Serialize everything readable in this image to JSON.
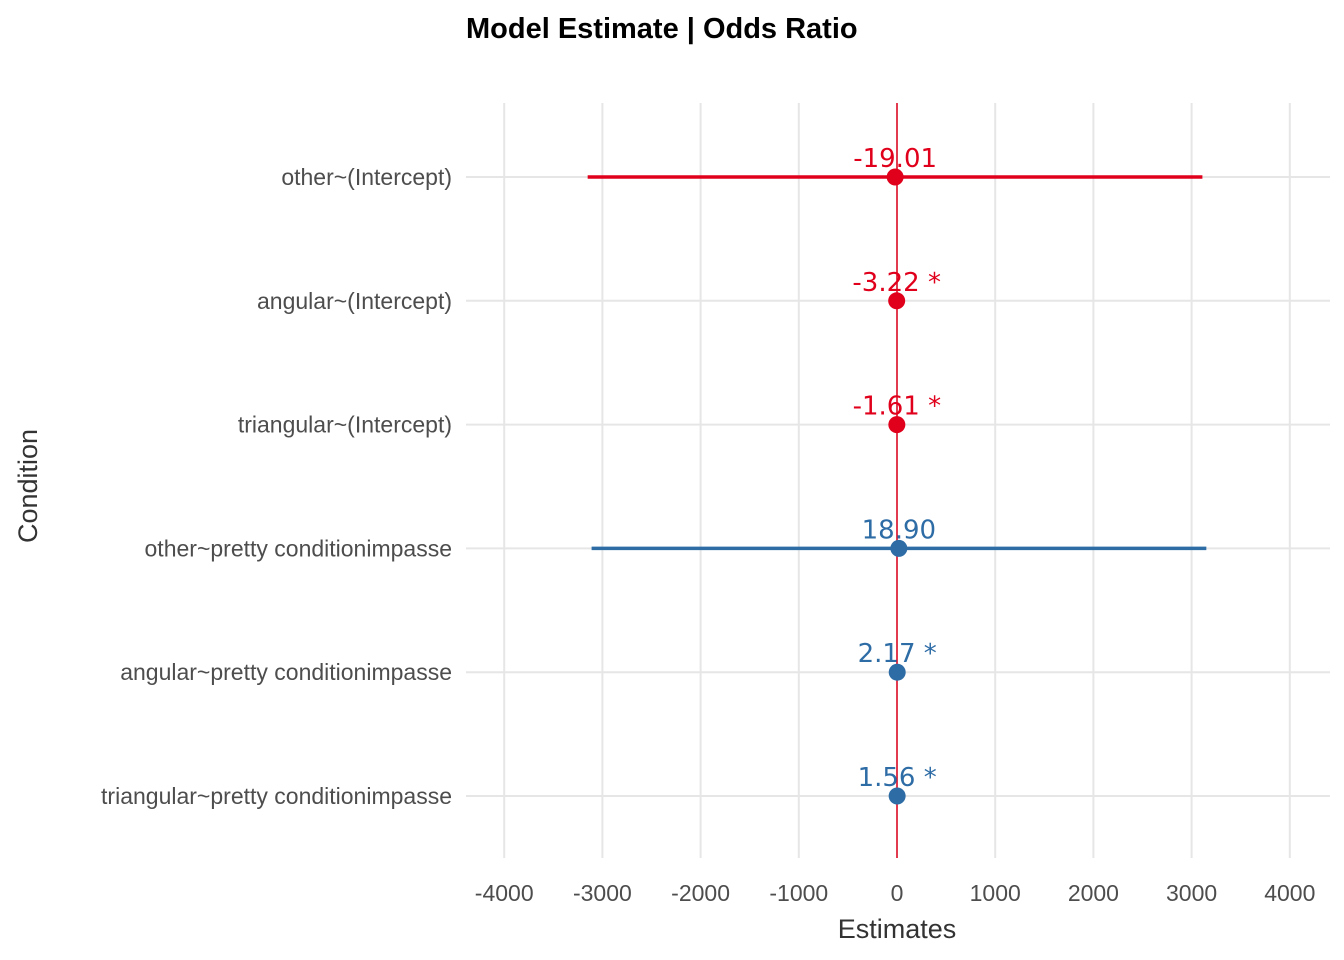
{
  "chart_data": {
    "type": "scatter",
    "title": "Model Estimate | Odds Ratio",
    "xlabel": "Estimates",
    "ylabel": "Condition",
    "xlim": [
      -4400,
      4400
    ],
    "xticks": [
      -4000,
      -3000,
      -2000,
      -1000,
      0,
      1000,
      2000,
      3000,
      4000
    ],
    "xtick_labels": [
      "-4000",
      "-3000",
      "-2000",
      "-1000",
      "0",
      "1000",
      "2000",
      "3000",
      "4000"
    ],
    "reference_line": 0,
    "grid": true,
    "colors": {
      "negative": "#e0001b",
      "positive": "#2e6ca6",
      "reference": "#e0001b",
      "grid": "#e6e6e6"
    },
    "rows": [
      {
        "term": "other~(Intercept)",
        "estimate": -19.01,
        "label": "-19.01",
        "ci_low": -3150,
        "ci_high": 3110,
        "sign": "negative"
      },
      {
        "term": "angular~(Intercept)",
        "estimate": -3.22,
        "label": "-3.22 *",
        "ci_low": null,
        "ci_high": null,
        "sign": "negative"
      },
      {
        "term": "triangular~(Intercept)",
        "estimate": -1.61,
        "label": "-1.61 *",
        "ci_low": null,
        "ci_high": null,
        "sign": "negative"
      },
      {
        "term": "other~pretty conditionimpasse",
        "estimate": 18.9,
        "label": "18.90",
        "ci_low": -3110,
        "ci_high": 3150,
        "sign": "positive"
      },
      {
        "term": "angular~pretty conditionimpasse",
        "estimate": 2.17,
        "label": "2.17 *",
        "ci_low": null,
        "ci_high": null,
        "sign": "positive"
      },
      {
        "term": "triangular~pretty conditionimpasse",
        "estimate": 1.56,
        "label": "1.56 *",
        "ci_low": null,
        "ci_high": null,
        "sign": "positive"
      }
    ]
  }
}
